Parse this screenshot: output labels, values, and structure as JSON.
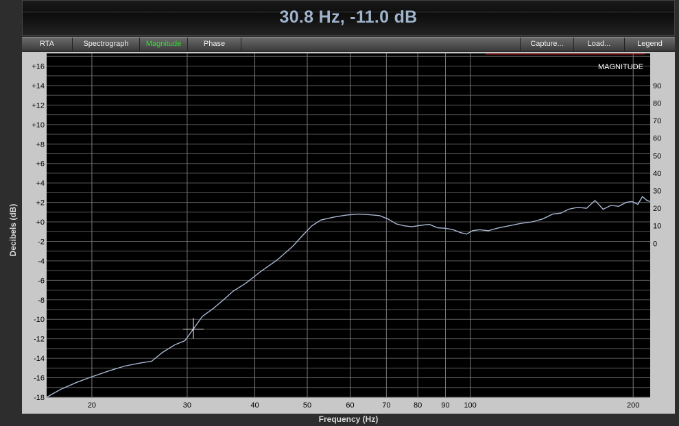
{
  "readout": "30.8 Hz, -11.0 dB",
  "toolbar": {
    "left": [
      "RTA",
      "Spectrograph",
      "Magnitude",
      "Phase"
    ],
    "active": "Magnitude",
    "right": [
      "Capture...",
      "Load...",
      "Legend"
    ]
  },
  "colors": {
    "plot_background": "#000000",
    "grid": "#5a5a5a",
    "trace": "#a9b8d4",
    "active_tab": "#2fe02f",
    "legend_trace": "#c01010"
  },
  "chart_data": {
    "type": "line",
    "xlabel": "Frequency (Hz)",
    "ylabel": "Decibels (dB)",
    "xscale": "log",
    "xlim": [
      16.5,
      215
    ],
    "ylim": [
      -18,
      17.3
    ],
    "y_ticks": [
      "+16",
      "+14",
      "+12",
      "+10",
      "+8",
      "+6",
      "+4",
      "+2",
      "+0",
      "-2",
      "-4",
      "-6",
      "-8",
      "-10",
      "-12",
      "-14",
      "-16",
      "-18"
    ],
    "x_ticks": [
      "20",
      "30",
      "40",
      "50",
      "60",
      "70",
      "80",
      "90",
      "100",
      "200"
    ],
    "right_axis_ticks": [
      "90",
      "80",
      "70",
      "60",
      "50",
      "40",
      "30",
      "20",
      "10",
      "0"
    ],
    "legend": {
      "label": "MAGNITUDE",
      "position": "top-right"
    },
    "grid": true,
    "cursor": {
      "x": 30.8,
      "y": -11.0
    },
    "series": [
      {
        "points": [
          [
            16.5,
            -18.0
          ],
          [
            17.5,
            -17.2
          ],
          [
            18.7,
            -16.5
          ],
          [
            20.0,
            -15.9
          ],
          [
            21.5,
            -15.3
          ],
          [
            23.0,
            -14.8
          ],
          [
            24.5,
            -14.5
          ],
          [
            25.8,
            -14.3
          ],
          [
            27.0,
            -13.4
          ],
          [
            28.5,
            -12.6
          ],
          [
            29.7,
            -12.2
          ],
          [
            30.8,
            -11.0
          ],
          [
            32.0,
            -9.7
          ],
          [
            33.5,
            -8.9
          ],
          [
            35.0,
            -8.0
          ],
          [
            36.5,
            -7.1
          ],
          [
            38.5,
            -6.3
          ],
          [
            41.0,
            -5.1
          ],
          [
            44.0,
            -3.9
          ],
          [
            47.0,
            -2.5
          ],
          [
            49.0,
            -1.4
          ],
          [
            51.0,
            -0.4
          ],
          [
            53.0,
            0.2
          ],
          [
            56.0,
            0.5
          ],
          [
            59.0,
            0.7
          ],
          [
            62.0,
            0.8
          ],
          [
            65.0,
            0.75
          ],
          [
            68.0,
            0.65
          ],
          [
            70.5,
            0.3
          ],
          [
            73.0,
            -0.2
          ],
          [
            75.5,
            -0.4
          ],
          [
            78.0,
            -0.5
          ],
          [
            81.0,
            -0.35
          ],
          [
            84.0,
            -0.25
          ],
          [
            87.0,
            -0.6
          ],
          [
            90.0,
            -0.65
          ],
          [
            93.0,
            -0.8
          ],
          [
            96.0,
            -1.1
          ],
          [
            98.5,
            -1.25
          ],
          [
            101.0,
            -0.9
          ],
          [
            104.0,
            -0.8
          ],
          [
            108.0,
            -0.9
          ],
          [
            113.0,
            -0.6
          ],
          [
            118.0,
            -0.4
          ],
          [
            124.0,
            -0.15
          ],
          [
            130.0,
            0.0
          ],
          [
            136.0,
            0.3
          ],
          [
            142.0,
            0.8
          ],
          [
            147.0,
            0.9
          ],
          [
            152.0,
            1.3
          ],
          [
            158.0,
            1.5
          ],
          [
            164.0,
            1.4
          ],
          [
            170.0,
            2.2
          ],
          [
            176.0,
            1.3
          ],
          [
            182.0,
            1.7
          ],
          [
            188.0,
            1.6
          ],
          [
            194.0,
            2.0
          ],
          [
            199.0,
            2.1
          ],
          [
            204.0,
            1.8
          ],
          [
            208.0,
            2.6
          ],
          [
            212.0,
            2.2
          ],
          [
            215.0,
            2.1
          ]
        ]
      }
    ]
  }
}
